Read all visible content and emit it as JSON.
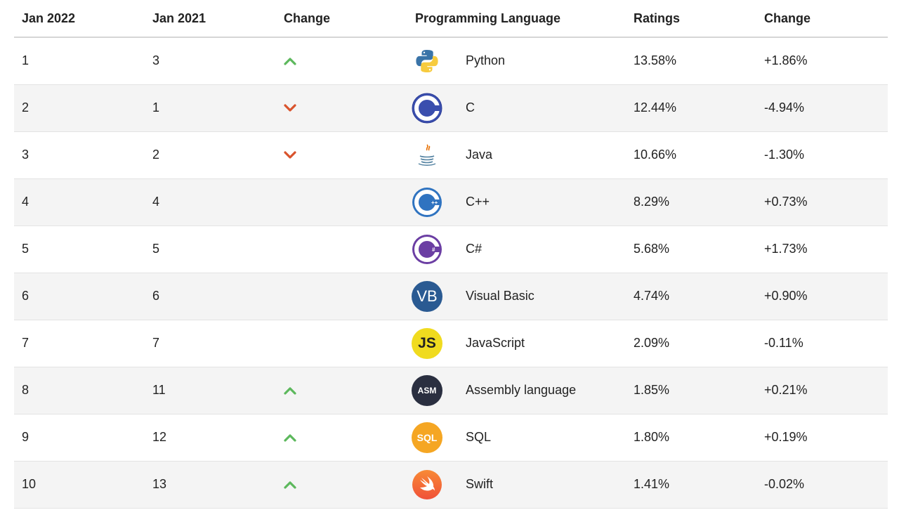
{
  "columns": {
    "rank_2022": "Jan 2022",
    "rank_2021": "Jan 2021",
    "change": "Change",
    "language": "Programming Language",
    "ratings": "Ratings",
    "rating_change": "Change"
  },
  "colors": {
    "up": "#5cb85c",
    "down": "#d9532c"
  },
  "rows": [
    {
      "rank": "1",
      "prev": "3",
      "trend": "up",
      "icon": "python-logo-icon",
      "language": "Python",
      "rating": "13.58%",
      "change": "+1.86%"
    },
    {
      "rank": "2",
      "prev": "1",
      "trend": "down",
      "icon": "c-logo-icon",
      "language": "C",
      "rating": "12.44%",
      "change": "-4.94%"
    },
    {
      "rank": "3",
      "prev": "2",
      "trend": "down",
      "icon": "java-logo-icon",
      "language": "Java",
      "rating": "10.66%",
      "change": "-1.30%"
    },
    {
      "rank": "4",
      "prev": "4",
      "trend": "none",
      "icon": "cpp-logo-icon",
      "language": "C++",
      "rating": "8.29%",
      "change": "+0.73%"
    },
    {
      "rank": "5",
      "prev": "5",
      "trend": "none",
      "icon": "csharp-logo-icon",
      "language": "C#",
      "rating": "5.68%",
      "change": "+1.73%"
    },
    {
      "rank": "6",
      "prev": "6",
      "trend": "none",
      "icon": "visual-basic-logo-icon",
      "language": "Visual Basic",
      "rating": "4.74%",
      "change": "+0.90%",
      "logo_text": "VB"
    },
    {
      "rank": "7",
      "prev": "7",
      "trend": "none",
      "icon": "javascript-logo-icon",
      "language": "JavaScript",
      "rating": "2.09%",
      "change": "-0.11%",
      "logo_text": "JS"
    },
    {
      "rank": "8",
      "prev": "11",
      "trend": "up",
      "icon": "assembly-logo-icon",
      "language": "Assembly language",
      "rating": "1.85%",
      "change": "+0.21%",
      "logo_text": "ASM"
    },
    {
      "rank": "9",
      "prev": "12",
      "trend": "up",
      "icon": "sql-logo-icon",
      "language": "SQL",
      "rating": "1.80%",
      "change": "+0.19%",
      "logo_text": "SQL"
    },
    {
      "rank": "10",
      "prev": "13",
      "trend": "up",
      "icon": "swift-logo-icon",
      "language": "Swift",
      "rating": "1.41%",
      "change": "-0.02%"
    }
  ]
}
